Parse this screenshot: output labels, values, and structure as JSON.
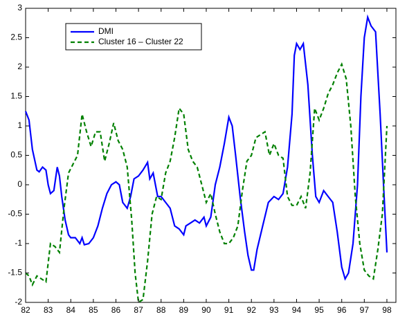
{
  "chart_data": {
    "type": "line",
    "xlim": [
      82,
      98.4
    ],
    "xticks": [
      82,
      83,
      84,
      85,
      86,
      87,
      88,
      89,
      90,
      91,
      92,
      93,
      94,
      95,
      96,
      97,
      98
    ],
    "ylim": [
      -2,
      3
    ],
    "yticks": [
      -2,
      -1.5,
      -1,
      -0.5,
      0,
      0.5,
      1,
      1.5,
      2,
      2.5,
      3
    ],
    "legend": "upper-left",
    "series": [
      {
        "name": "DMI",
        "color": "#0000ff",
        "dash": "solid",
        "x": [
          82.0,
          82.15,
          82.3,
          82.5,
          82.6,
          82.75,
          82.9,
          83.0,
          83.1,
          83.25,
          83.4,
          83.5,
          83.6,
          83.75,
          83.9,
          84.0,
          84.2,
          84.4,
          84.5,
          84.6,
          84.8,
          85.0,
          85.2,
          85.4,
          85.6,
          85.8,
          86.0,
          86.15,
          86.3,
          86.5,
          86.65,
          86.8,
          87.0,
          87.2,
          87.4,
          87.5,
          87.65,
          87.85,
          88.0,
          88.2,
          88.4,
          88.6,
          88.8,
          89.0,
          89.1,
          89.3,
          89.5,
          89.7,
          89.9,
          90.0,
          90.2,
          90.4,
          90.6,
          90.8,
          91.0,
          91.15,
          91.3,
          91.5,
          91.7,
          91.85,
          92.0,
          92.1,
          92.25,
          92.5,
          92.75,
          93.0,
          93.2,
          93.4,
          93.6,
          93.8,
          93.9,
          94.0,
          94.15,
          94.3,
          94.5,
          94.7,
          94.85,
          95.0,
          95.2,
          95.4,
          95.6,
          95.8,
          96.0,
          96.15,
          96.3,
          96.5,
          96.7,
          96.85,
          97.0,
          97.15,
          97.3,
          97.5,
          97.7,
          97.85,
          98.0
        ],
        "values": [
          1.25,
          1.1,
          0.6,
          0.25,
          0.22,
          0.3,
          0.25,
          0.0,
          -0.15,
          -0.1,
          0.3,
          0.15,
          -0.2,
          -0.6,
          -0.85,
          -0.9,
          -0.9,
          -1.0,
          -0.9,
          -1.02,
          -1.0,
          -0.9,
          -0.7,
          -0.4,
          -0.15,
          0.0,
          0.05,
          0.0,
          -0.3,
          -0.4,
          -0.2,
          0.1,
          0.15,
          0.25,
          0.38,
          0.1,
          0.2,
          -0.2,
          -0.2,
          -0.3,
          -0.4,
          -0.7,
          -0.75,
          -0.85,
          -0.7,
          -0.65,
          -0.6,
          -0.65,
          -0.55,
          -0.7,
          -0.55,
          0.0,
          0.3,
          0.7,
          1.15,
          1.0,
          0.5,
          -0.2,
          -0.8,
          -1.2,
          -1.45,
          -1.45,
          -1.1,
          -0.7,
          -0.3,
          -0.2,
          -0.25,
          -0.15,
          0.3,
          1.2,
          2.2,
          2.4,
          2.3,
          2.4,
          1.7,
          0.5,
          -0.2,
          -0.3,
          -0.1,
          -0.2,
          -0.3,
          -0.8,
          -1.4,
          -1.6,
          -1.5,
          -1.0,
          0.0,
          1.5,
          2.5,
          2.85,
          2.7,
          2.6,
          1.2,
          0.0,
          -1.15
        ]
      },
      {
        "name": "Cluster 16 – Cluster 22",
        "color": "#008000",
        "dash": "dashed",
        "x": [
          82.0,
          82.15,
          82.3,
          82.5,
          82.7,
          82.9,
          83.1,
          83.3,
          83.5,
          83.7,
          83.9,
          84.1,
          84.3,
          84.5,
          84.7,
          84.9,
          85.1,
          85.3,
          85.5,
          85.7,
          85.9,
          86.1,
          86.3,
          86.5,
          86.7,
          86.85,
          87.0,
          87.2,
          87.4,
          87.6,
          87.8,
          88.0,
          88.2,
          88.4,
          88.6,
          88.8,
          89.0,
          89.2,
          89.4,
          89.6,
          89.8,
          90.0,
          90.2,
          90.4,
          90.6,
          90.8,
          91.0,
          91.2,
          91.4,
          91.6,
          91.8,
          92.0,
          92.2,
          92.4,
          92.6,
          92.8,
          93.0,
          93.2,
          93.4,
          93.6,
          93.8,
          94.0,
          94.2,
          94.4,
          94.6,
          94.8,
          95.0,
          95.2,
          95.4,
          95.6,
          95.8,
          96.0,
          96.2,
          96.4,
          96.6,
          96.8,
          97.0,
          97.2,
          97.4,
          97.6,
          97.8,
          98.0
        ],
        "values": [
          -1.5,
          -1.55,
          -1.7,
          -1.55,
          -1.6,
          -1.65,
          -1.0,
          -1.05,
          -1.15,
          -0.4,
          0.2,
          0.35,
          0.5,
          1.2,
          0.9,
          0.65,
          0.9,
          0.9,
          0.4,
          0.7,
          1.05,
          0.75,
          0.6,
          0.3,
          -0.6,
          -1.5,
          -2.0,
          -1.95,
          -1.3,
          -0.5,
          -0.2,
          -0.25,
          0.2,
          0.4,
          0.8,
          1.3,
          1.2,
          0.6,
          0.4,
          0.3,
          0.0,
          -0.3,
          -0.15,
          -0.5,
          -0.8,
          -1.0,
          -1.0,
          -0.9,
          -0.7,
          -0.1,
          0.4,
          0.5,
          0.8,
          0.85,
          0.9,
          0.5,
          0.7,
          0.5,
          0.45,
          -0.2,
          -0.35,
          -0.35,
          -0.2,
          -0.4,
          0.2,
          1.3,
          1.1,
          1.3,
          1.55,
          1.7,
          1.9,
          2.05,
          1.8,
          1.0,
          -0.2,
          -1.0,
          -1.45,
          -1.55,
          -1.6,
          -1.1,
          -0.5,
          1.0
        ]
      }
    ]
  }
}
